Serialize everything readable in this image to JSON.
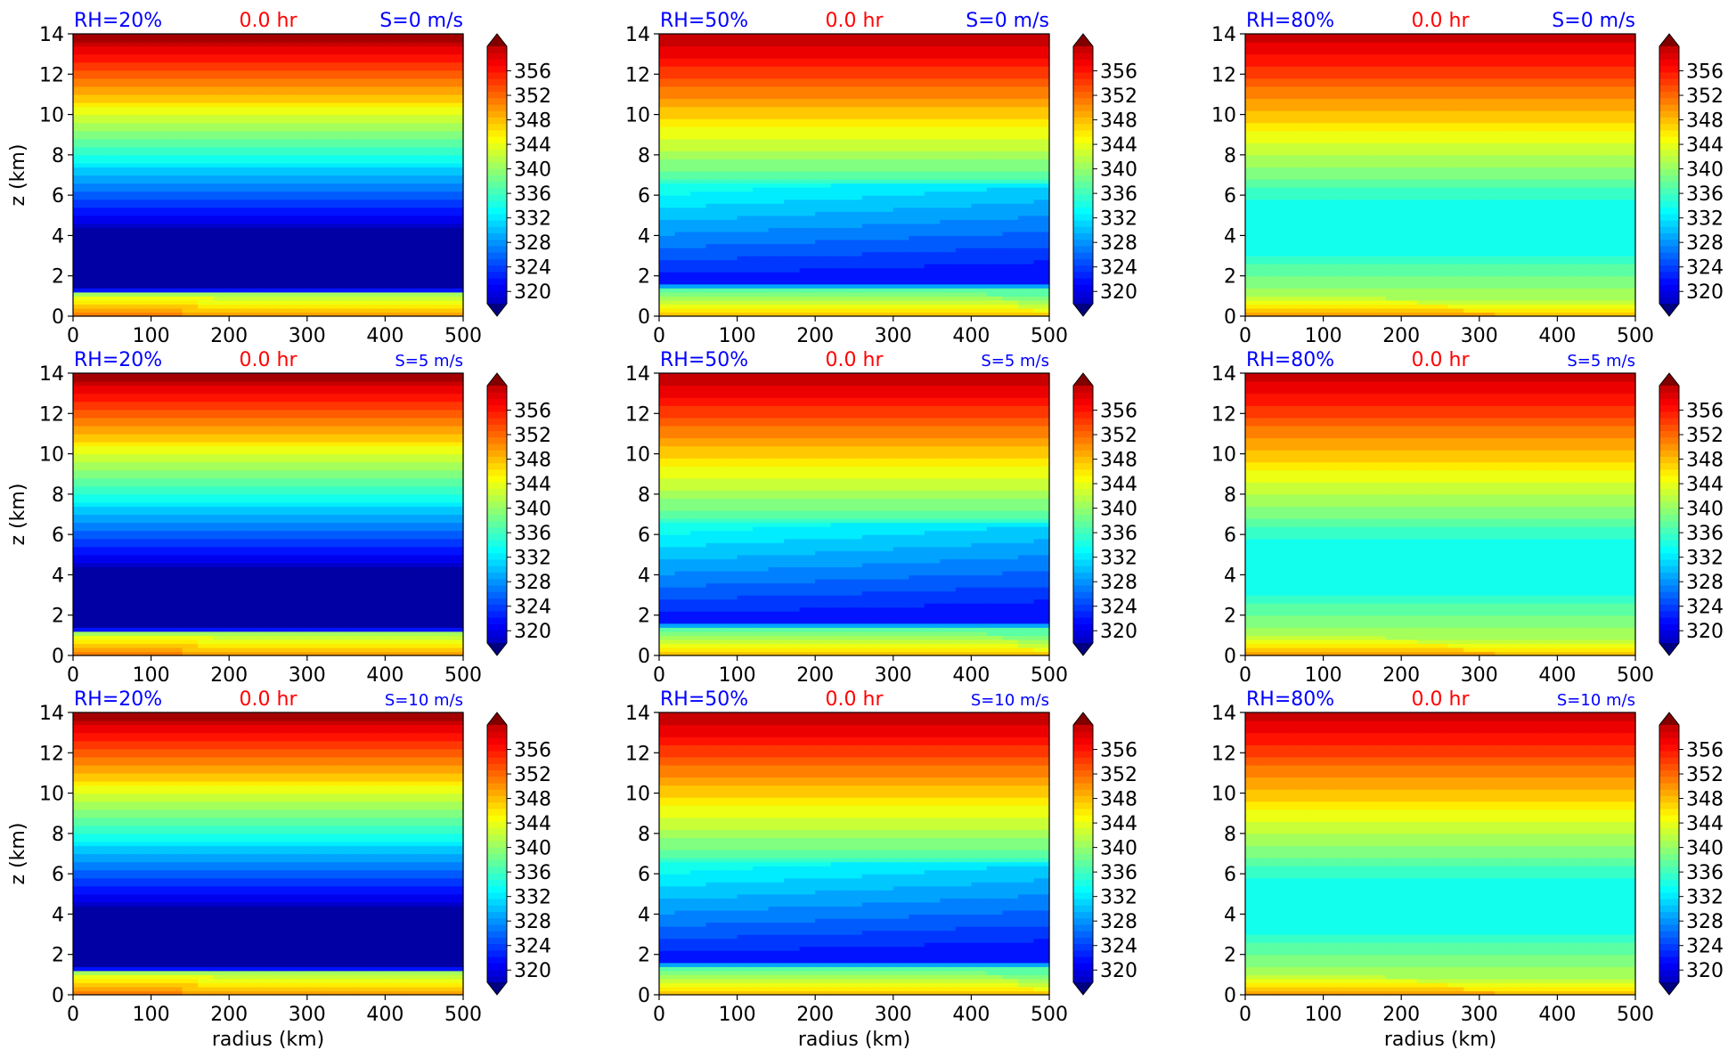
{
  "figure": {
    "xlabel": "radius (km)",
    "ylabel": "z (km)",
    "colorbar_ticks": [
      320,
      324,
      328,
      332,
      336,
      340,
      344,
      348,
      352,
      356
    ],
    "colormap": "jet",
    "colors": {
      "label_blue": "#0000ff",
      "label_red": "#ff0000"
    }
  },
  "chart_data": [
    {
      "type": "heatmap",
      "rh_label": "RH=20%",
      "time_label": "0.0 hr",
      "shear_label": "S=0 m/s",
      "rh": 20,
      "shear": 0,
      "xlim": [
        0,
        500
      ],
      "ylim": [
        0,
        14
      ],
      "xticks": [
        "0",
        "100",
        "200",
        "300",
        "400",
        "500"
      ],
      "yticks": [
        "0",
        "2",
        "4",
        "6",
        "8",
        "10",
        "12",
        "14"
      ],
      "clim": [
        318,
        360
      ]
    },
    {
      "type": "heatmap",
      "rh_label": "RH=50%",
      "time_label": "0.0 hr",
      "shear_label": "S=0 m/s",
      "rh": 50,
      "shear": 0,
      "xlim": [
        0,
        500
      ],
      "ylim": [
        0,
        14
      ],
      "xticks": [
        "0",
        "100",
        "200",
        "300",
        "400",
        "500"
      ],
      "yticks": [
        "0",
        "2",
        "4",
        "6",
        "8",
        "10",
        "12",
        "14"
      ],
      "clim": [
        318,
        360
      ]
    },
    {
      "type": "heatmap",
      "rh_label": "RH=80%",
      "time_label": "0.0 hr",
      "shear_label": "S=0 m/s",
      "rh": 80,
      "shear": 0,
      "xlim": [
        0,
        500
      ],
      "ylim": [
        0,
        14
      ],
      "xticks": [
        "0",
        "100",
        "200",
        "300",
        "400",
        "500"
      ],
      "yticks": [
        "0",
        "2",
        "4",
        "6",
        "8",
        "10",
        "12",
        "14"
      ],
      "clim": [
        318,
        360
      ]
    },
    {
      "type": "heatmap",
      "rh_label": "RH=20%",
      "time_label": "0.0 hr",
      "shear_label": "S=5 m/s",
      "rh": 20,
      "shear": 5,
      "xlim": [
        0,
        500
      ],
      "ylim": [
        0,
        14
      ],
      "xticks": [
        "0",
        "100",
        "200",
        "300",
        "400",
        "500"
      ],
      "yticks": [
        "0",
        "2",
        "4",
        "6",
        "8",
        "10",
        "12",
        "14"
      ],
      "clim": [
        318,
        360
      ]
    },
    {
      "type": "heatmap",
      "rh_label": "RH=50%",
      "time_label": "0.0 hr",
      "shear_label": "S=5 m/s",
      "rh": 50,
      "shear": 5,
      "xlim": [
        0,
        500
      ],
      "ylim": [
        0,
        14
      ],
      "xticks": [
        "0",
        "100",
        "200",
        "300",
        "400",
        "500"
      ],
      "yticks": [
        "0",
        "2",
        "4",
        "6",
        "8",
        "10",
        "12",
        "14"
      ],
      "clim": [
        318,
        360
      ]
    },
    {
      "type": "heatmap",
      "rh_label": "RH=80%",
      "time_label": "0.0 hr",
      "shear_label": "S=5 m/s",
      "rh": 80,
      "shear": 5,
      "xlim": [
        0,
        500
      ],
      "ylim": [
        0,
        14
      ],
      "xticks": [
        "0",
        "100",
        "200",
        "300",
        "400",
        "500"
      ],
      "yticks": [
        "0",
        "2",
        "4",
        "6",
        "8",
        "10",
        "12",
        "14"
      ],
      "clim": [
        318,
        360
      ]
    },
    {
      "type": "heatmap",
      "rh_label": "RH=20%",
      "time_label": "0.0 hr",
      "shear_label": "S=10 m/s",
      "rh": 20,
      "shear": 10,
      "xlim": [
        0,
        500
      ],
      "ylim": [
        0,
        14
      ],
      "xticks": [
        "0",
        "100",
        "200",
        "300",
        "400",
        "500"
      ],
      "yticks": [
        "0",
        "2",
        "4",
        "6",
        "8",
        "10",
        "12",
        "14"
      ],
      "clim": [
        318,
        360
      ]
    },
    {
      "type": "heatmap",
      "rh_label": "RH=50%",
      "time_label": "0.0 hr",
      "shear_label": "S=10 m/s",
      "rh": 50,
      "shear": 10,
      "xlim": [
        0,
        500
      ],
      "ylim": [
        0,
        14
      ],
      "xticks": [
        "0",
        "100",
        "200",
        "300",
        "400",
        "500"
      ],
      "yticks": [
        "0",
        "2",
        "4",
        "6",
        "8",
        "10",
        "12",
        "14"
      ],
      "clim": [
        318,
        360
      ]
    },
    {
      "type": "heatmap",
      "rh_label": "RH=80%",
      "time_label": "0.0 hr",
      "shear_label": "S=10 m/s",
      "rh": 80,
      "shear": 10,
      "xlim": [
        0,
        500
      ],
      "ylim": [
        0,
        14
      ],
      "xticks": [
        "0",
        "100",
        "200",
        "300",
        "400",
        "500"
      ],
      "yticks": [
        "0",
        "2",
        "4",
        "6",
        "8",
        "10",
        "12",
        "14"
      ],
      "clim": [
        318,
        360
      ]
    }
  ]
}
